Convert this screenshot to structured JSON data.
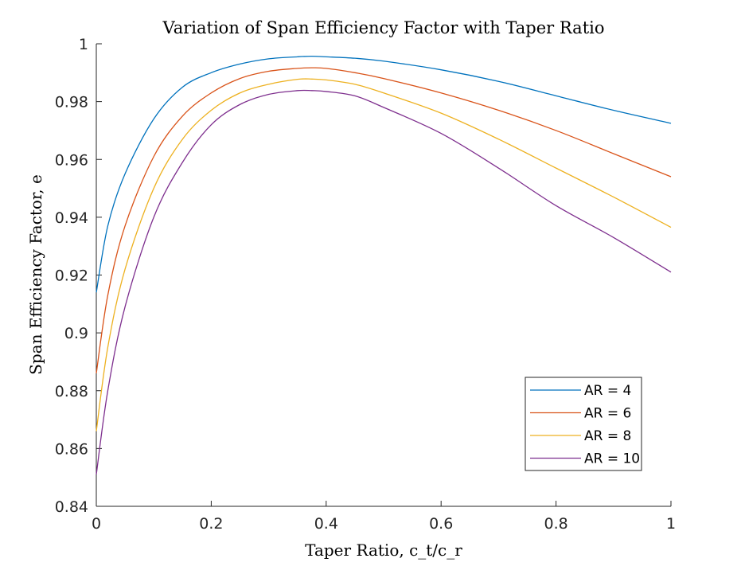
{
  "chart_data": {
    "type": "line",
    "title": "Variation of Span Efficiency Factor with Taper Ratio",
    "xlabel": "Taper Ratio, c_t/c_r",
    "ylabel": "Span Efficiency Factor, e",
    "xlim": [
      0,
      1
    ],
    "ylim": [
      0.84,
      1
    ],
    "xticks": [
      0,
      0.2,
      0.4,
      0.6,
      0.8,
      1
    ],
    "xtick_labels": [
      "0",
      "0.2",
      "0.4",
      "0.6",
      "0.8",
      "1"
    ],
    "yticks": [
      0.84,
      0.86,
      0.88,
      0.9,
      0.92,
      0.94,
      0.96,
      0.98,
      1
    ],
    "ytick_labels": [
      "0.84",
      "0.86",
      "0.88",
      "0.9",
      "0.92",
      "0.94",
      "0.96",
      "0.98",
      "1"
    ],
    "grid": false,
    "legend_position": "bottom-right",
    "x": [
      0,
      0.02,
      0.05,
      0.1,
      0.15,
      0.2,
      0.25,
      0.3,
      0.35,
      0.375,
      0.4,
      0.45,
      0.5,
      0.6,
      0.7,
      0.8,
      0.9,
      1.0
    ],
    "series": [
      {
        "name": "AR = 4",
        "color": "#0072BD",
        "values": [
          0.914,
          0.937,
          0.955,
          0.974,
          0.985,
          0.99,
          0.993,
          0.9948,
          0.9955,
          0.9957,
          0.9955,
          0.995,
          0.994,
          0.991,
          0.987,
          0.982,
          0.977,
          0.9725
        ]
      },
      {
        "name": "AR = 6",
        "color": "#D95319",
        "values": [
          0.886,
          0.913,
          0.937,
          0.961,
          0.975,
          0.983,
          0.988,
          0.9905,
          0.9915,
          0.9917,
          0.9915,
          0.99,
          0.988,
          0.983,
          0.977,
          0.97,
          0.962,
          0.954
        ]
      },
      {
        "name": "AR = 8",
        "color": "#EDB120",
        "values": [
          0.866,
          0.895,
          0.922,
          0.95,
          0.967,
          0.977,
          0.983,
          0.986,
          0.9877,
          0.9878,
          0.9875,
          0.986,
          0.983,
          0.976,
          0.967,
          0.957,
          0.947,
          0.9365
        ]
      },
      {
        "name": "AR = 10",
        "color": "#7E2F8E",
        "values": [
          0.851,
          0.88,
          0.909,
          0.94,
          0.959,
          0.972,
          0.979,
          0.9825,
          0.9838,
          0.9838,
          0.9835,
          0.982,
          0.978,
          0.969,
          0.957,
          0.944,
          0.933,
          0.921
        ]
      }
    ]
  }
}
